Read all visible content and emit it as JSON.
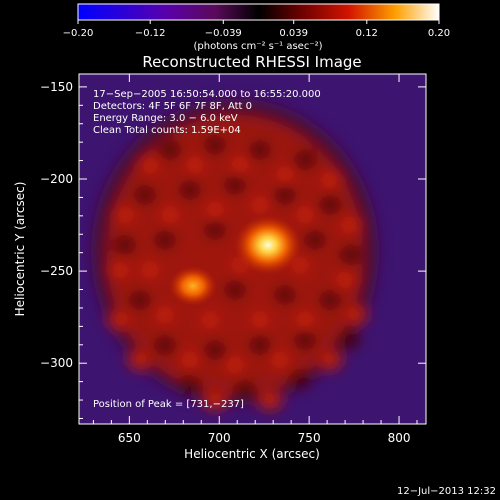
{
  "chart_data": {
    "type": "heatmap",
    "title": "Reconstructed RHESSI Image",
    "xlabel": "Heliocentric X (arcsec)",
    "ylabel": "Heliocentric Y (arcsec)",
    "xlim": [
      622,
      815
    ],
    "ylim": [
      -333,
      -143
    ],
    "x_ticks": [
      650,
      700,
      750,
      800
    ],
    "y_ticks": [
      -150,
      -200,
      -250,
      -300
    ],
    "x_tick_labels": [
      "650",
      "700",
      "750",
      "800"
    ],
    "y_tick_labels": [
      "−150",
      "−200",
      "−250",
      "−300"
    ],
    "colorbar": {
      "min": -0.2,
      "max": 0.2,
      "ticks": [
        -0.2,
        -0.12,
        -0.039,
        0.039,
        0.12,
        0.2
      ],
      "tick_labels": [
        "−0.20",
        "−0.12",
        "−0.039",
        "0.039",
        "0.12",
        "0.20"
      ],
      "units": "(photons cm⁻² s⁻¹ asec⁻²)"
    },
    "annotations": [
      "17−Sep−2005 16:50:54.000 to 16:55:20.000",
      "Detectors: 4F 5F 6F 7F 8F, Att 0",
      "Energy Range: 3.0 − 6.0 keV",
      "Clean    Total counts: 1.59E+04"
    ],
    "peak_label": "Position of Peak = [731,−237]",
    "sources": [
      {
        "x": 731,
        "y": -237,
        "intensity": 0.2
      },
      {
        "x": 688,
        "y": -262,
        "intensity": 0.14
      }
    ],
    "timestamp": "12−Jul−2013 12:32"
  }
}
